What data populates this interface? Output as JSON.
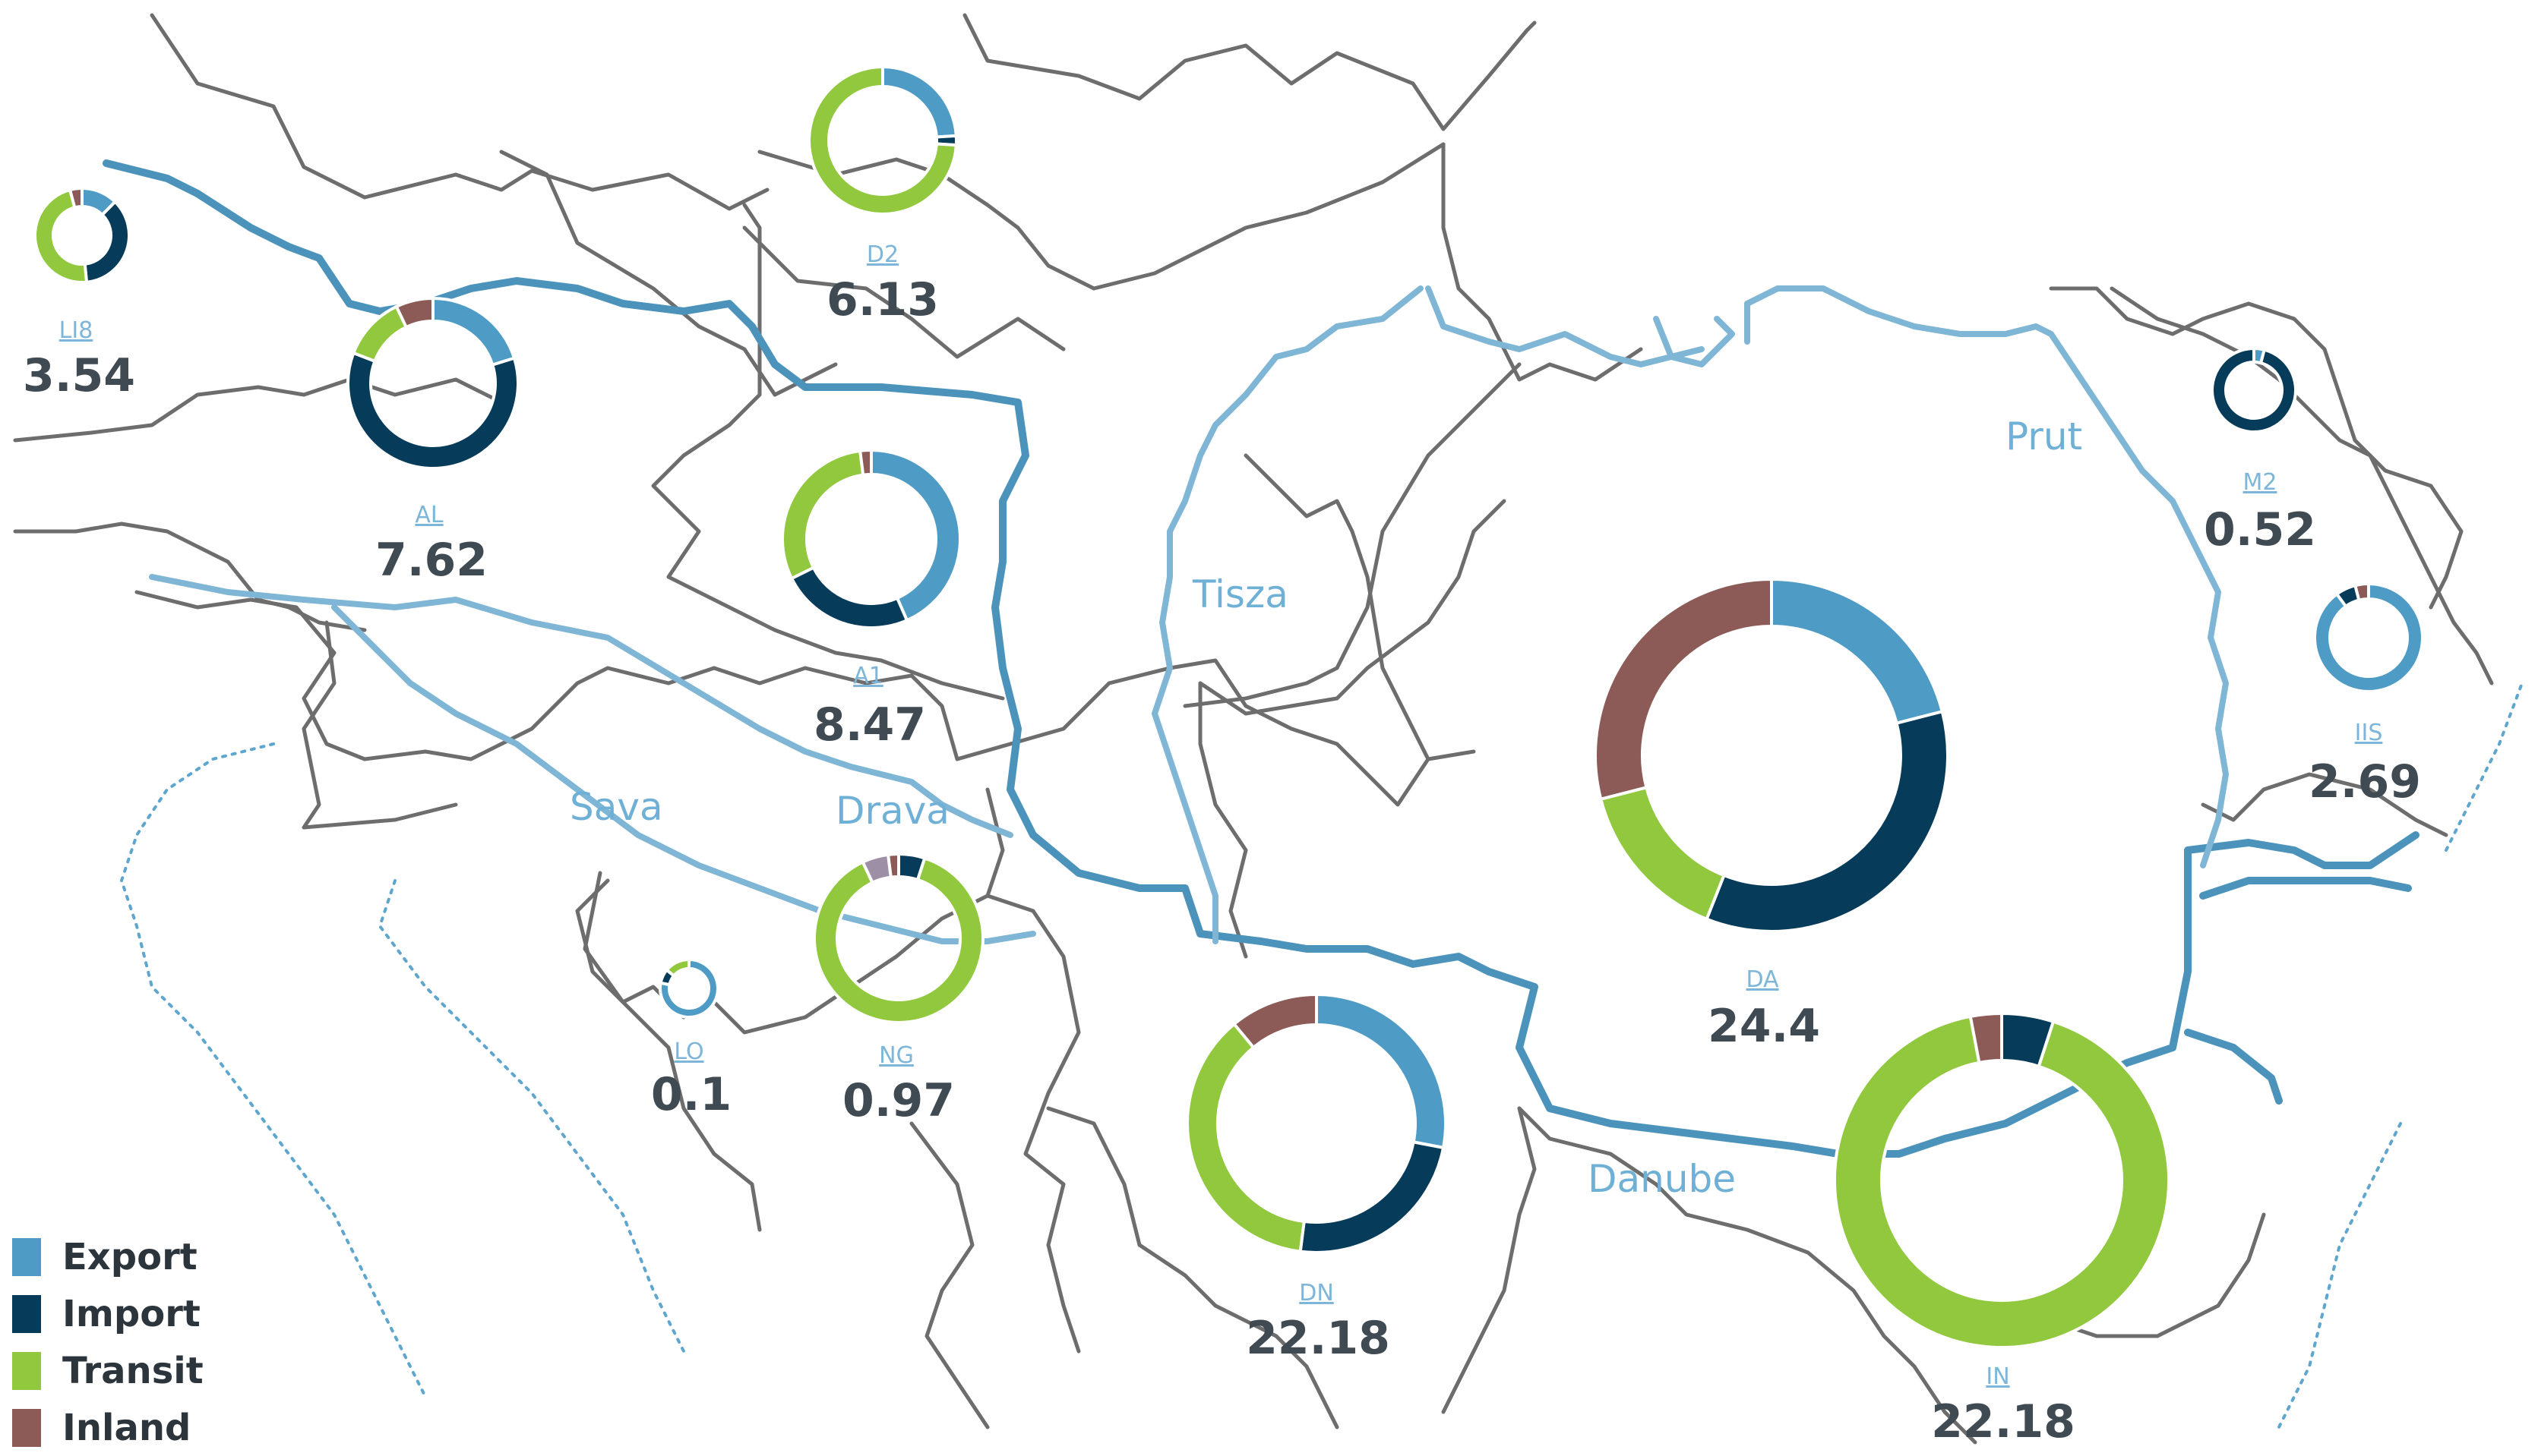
{
  "categories": [
    "Export",
    "Import",
    "Transit",
    "Inland"
  ],
  "colors": {
    "Export": "#4e9bc6",
    "Import": "#073b5a",
    "Transit": "#92c83e",
    "Inland": "#8c5a57",
    "Other": "#9d8fa6"
  },
  "legend": {
    "items": [
      {
        "label": "Export",
        "color": "#4e9bc6"
      },
      {
        "label": "Import",
        "color": "#073b5a"
      },
      {
        "label": "Transit",
        "color": "#92c83e"
      },
      {
        "label": "Inland",
        "color": "#8c5a57"
      }
    ]
  },
  "rivers": {
    "sava": "Sava",
    "drava": "Drava",
    "tisza": "Tisza",
    "danube": "Danube",
    "prut": "Prut"
  },
  "ports": [
    {
      "code": "LI8",
      "value": "3.54",
      "shares": {
        "Export": 0.12,
        "Import": 0.35,
        "Transit": 0.46,
        "Inland": 0.04
      }
    },
    {
      "code": "AL",
      "value": "7.62",
      "shares": {
        "Export": 0.2,
        "Import": 0.6,
        "Transit": 0.12,
        "Inland": 0.07
      }
    },
    {
      "code": "D2",
      "value": "6.13",
      "shares": {
        "Export": 0.24,
        "Import": 0.02,
        "Transit": 0.74,
        "Inland": 0.0
      }
    },
    {
      "code": "A1",
      "value": "8.47",
      "shares": {
        "Export": 0.43,
        "Import": 0.24,
        "Transit": 0.3,
        "Inland": 0.02
      }
    },
    {
      "code": "LO",
      "value": "0.1",
      "shares": {
        "Export": 0.78,
        "Import": 0.08,
        "Transit": 0.14,
        "Inland": 0.0
      }
    },
    {
      "code": "NG",
      "value": "0.97",
      "shares": {
        "Export": 0.0,
        "Import": 0.05,
        "Transit": 0.88,
        "Inland": 0.02,
        "Other": 0.05
      }
    },
    {
      "code": "DN",
      "value": "22.18",
      "shares": {
        "Export": 0.28,
        "Import": 0.24,
        "Transit": 0.37,
        "Inland": 0.11
      }
    },
    {
      "code": "DA",
      "value": "24.4",
      "shares": {
        "Export": 0.21,
        "Import": 0.35,
        "Transit": 0.15,
        "Inland": 0.29
      }
    },
    {
      "code": "IN",
      "value": "22.18",
      "shares": {
        "Export": 0.0,
        "Import": 0.05,
        "Transit": 0.92,
        "Inland": 0.03
      }
    },
    {
      "code": "M2",
      "value": "0.52",
      "shares": {
        "Export": 0.04,
        "Import": 0.96,
        "Transit": 0.0,
        "Inland": 0.0
      }
    },
    {
      "code": "IIS",
      "value": "2.69",
      "shares": {
        "Export": 0.9,
        "Import": 0.06,
        "Transit": 0.0,
        "Inland": 0.04
      }
    }
  ]
}
